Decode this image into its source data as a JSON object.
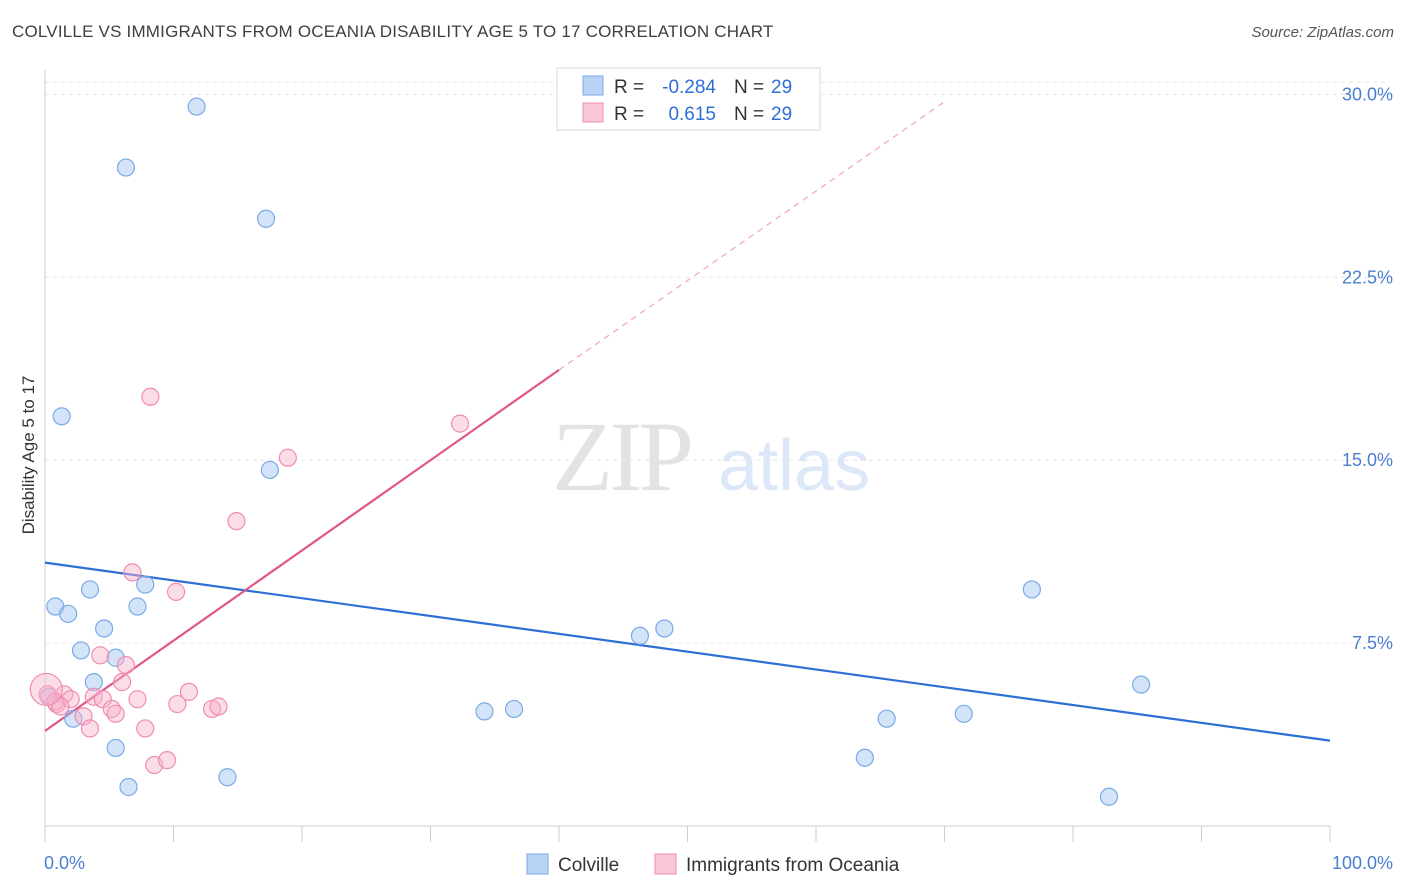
{
  "header": {
    "title": "COLVILLE VS IMMIGRANTS FROM OCEANIA DISABILITY AGE 5 TO 17 CORRELATION CHART",
    "source": "Source: ZipAtlas.com"
  },
  "watermark": {
    "part1": "ZIP",
    "part2": "atlas"
  },
  "stats_legend": [
    {
      "r_label": "R =",
      "r_value": "-0.284",
      "n_label": "N =",
      "n_value": "29"
    },
    {
      "r_label": "R =",
      "r_value": "0.615",
      "n_label": "N =",
      "n_value": "29"
    }
  ],
  "chart_data": {
    "type": "scatter",
    "xlabel": "",
    "ylabel": "Disability Age 5 to 17",
    "xlim": [
      0,
      100
    ],
    "ylim": [
      0,
      31
    ],
    "x_tick_labels": [
      "0.0%",
      "100.0%"
    ],
    "y_ticks": [
      7.5,
      15.0,
      22.5,
      30.0
    ],
    "y_tick_labels": [
      "7.5%",
      "15.0%",
      "22.5%",
      "30.0%"
    ],
    "grid": true,
    "legend_position": "bottom-center",
    "series": [
      {
        "name": "Colville",
        "color": "#7aaae8",
        "line_color": "#2e6fd6",
        "trend": {
          "x": [
            0,
            100
          ],
          "y": [
            10.8,
            3.5
          ],
          "dashed_extension": false
        },
        "points": [
          {
            "x": 0.3,
            "y": 5.3
          },
          {
            "x": 0.8,
            "y": 9.0
          },
          {
            "x": 1.3,
            "y": 16.8
          },
          {
            "x": 1.8,
            "y": 8.7
          },
          {
            "x": 2.2,
            "y": 4.4
          },
          {
            "x": 2.8,
            "y": 7.2
          },
          {
            "x": 3.5,
            "y": 9.7
          },
          {
            "x": 3.8,
            "y": 5.9
          },
          {
            "x": 4.6,
            "y": 8.1
          },
          {
            "x": 5.5,
            "y": 6.9
          },
          {
            "x": 5.5,
            "y": 3.2
          },
          {
            "x": 6.3,
            "y": 27.0
          },
          {
            "x": 6.5,
            "y": 1.6
          },
          {
            "x": 7.2,
            "y": 9.0
          },
          {
            "x": 7.8,
            "y": 9.9
          },
          {
            "x": 11.8,
            "y": 29.5
          },
          {
            "x": 14.2,
            "y": 2.0
          },
          {
            "x": 17.2,
            "y": 24.9
          },
          {
            "x": 17.5,
            "y": 14.6
          },
          {
            "x": 34.2,
            "y": 4.7
          },
          {
            "x": 36.5,
            "y": 4.8
          },
          {
            "x": 46.3,
            "y": 7.8
          },
          {
            "x": 48.2,
            "y": 8.1
          },
          {
            "x": 63.8,
            "y": 2.8
          },
          {
            "x": 65.5,
            "y": 4.4
          },
          {
            "x": 71.5,
            "y": 4.6
          },
          {
            "x": 76.8,
            "y": 9.7
          },
          {
            "x": 82.8,
            "y": 1.2
          },
          {
            "x": 85.3,
            "y": 5.8
          }
        ]
      },
      {
        "name": "Immigrants from Oceania",
        "color": "#f4a6c0",
        "line_color": "#e0558a",
        "trend": {
          "x": [
            0,
            40
          ],
          "y": [
            3.9,
            18.7
          ],
          "dashed_extension": true,
          "dashed_x": [
            40,
            70
          ],
          "dashed_y": [
            18.7,
            29.7
          ]
        },
        "points": [
          {
            "x": 0.2,
            "y": 5.4
          },
          {
            "x": 0.9,
            "y": 5.0
          },
          {
            "x": 1.5,
            "y": 5.4
          },
          {
            "x": 2.0,
            "y": 5.2
          },
          {
            "x": 3.0,
            "y": 4.5
          },
          {
            "x": 3.5,
            "y": 4.0
          },
          {
            "x": 3.8,
            "y": 5.3
          },
          {
            "x": 4.3,
            "y": 7.0
          },
          {
            "x": 4.5,
            "y": 5.2
          },
          {
            "x": 5.2,
            "y": 4.8
          },
          {
            "x": 5.5,
            "y": 4.6
          },
          {
            "x": 6.0,
            "y": 5.9
          },
          {
            "x": 6.3,
            "y": 6.6
          },
          {
            "x": 6.8,
            "y": 10.4
          },
          {
            "x": 7.2,
            "y": 5.2
          },
          {
            "x": 7.8,
            "y": 4.0
          },
          {
            "x": 8.2,
            "y": 17.6
          },
          {
            "x": 8.5,
            "y": 2.5
          },
          {
            "x": 9.5,
            "y": 2.7
          },
          {
            "x": 10.2,
            "y": 9.6
          },
          {
            "x": 10.3,
            "y": 5.0
          },
          {
            "x": 11.2,
            "y": 5.5
          },
          {
            "x": 13.0,
            "y": 4.8
          },
          {
            "x": 13.5,
            "y": 4.9
          },
          {
            "x": 14.9,
            "y": 12.5
          },
          {
            "x": 18.9,
            "y": 15.1
          },
          {
            "x": 32.3,
            "y": 16.5
          },
          {
            "x": 0.8,
            "y": 5.1
          },
          {
            "x": 1.2,
            "y": 4.9
          }
        ]
      }
    ]
  },
  "bottom_legend": [
    {
      "label": "Colville",
      "color": "#b9d3f5",
      "border": "#7aaae8"
    },
    {
      "label": "Immigrants from Oceania",
      "color": "#f9c8d8",
      "border": "#f08cb0"
    }
  ]
}
